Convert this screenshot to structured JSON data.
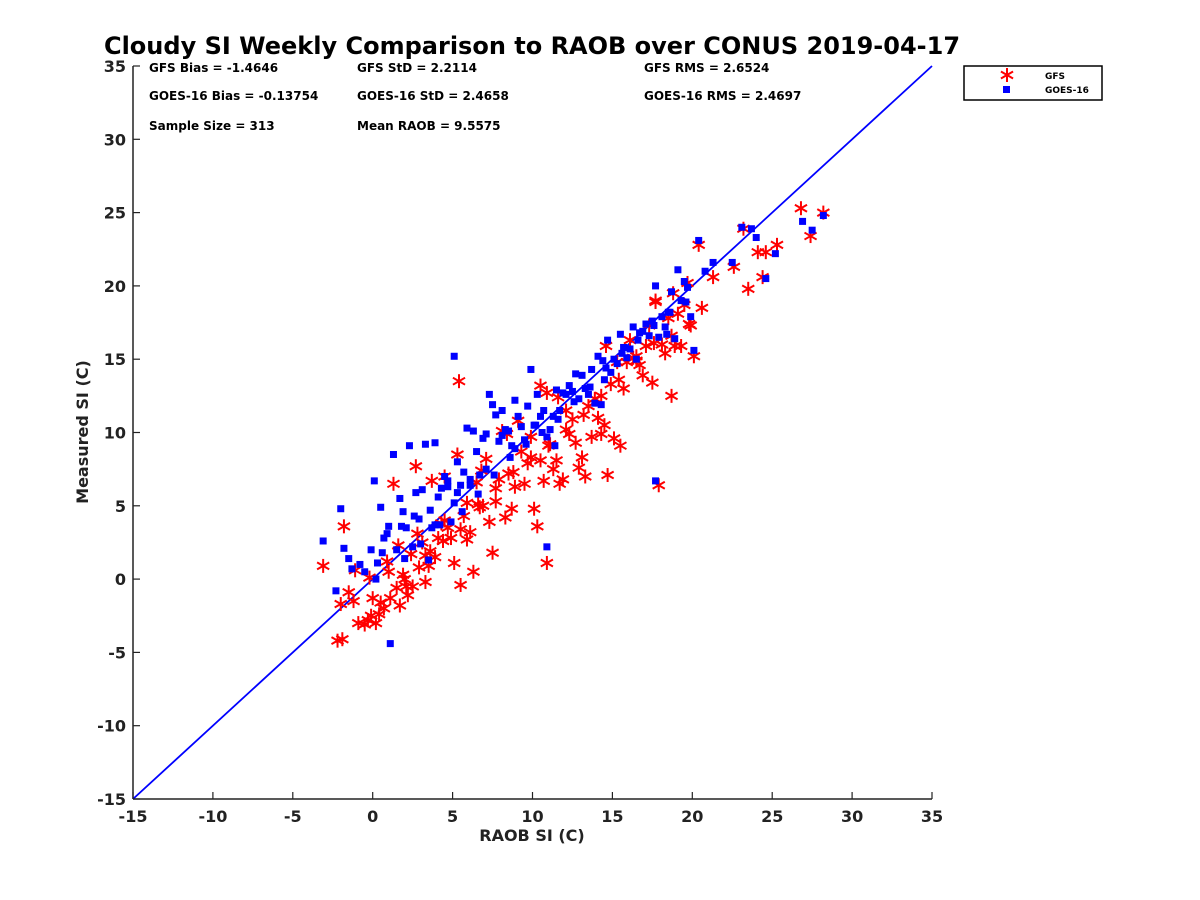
{
  "chart_data": {
    "type": "scatter",
    "title": "Cloudy SI Weekly Comparison to RAOB over CONUS 2019-04-17",
    "xlabel": "RAOB SI (C)",
    "ylabel": "Measured SI (C)",
    "xlim": [
      -15,
      35
    ],
    "ylim": [
      -15,
      35
    ],
    "x_ticks": [
      "-15",
      "-10",
      "-5",
      "0",
      "5",
      "10",
      "15",
      "20",
      "25",
      "30",
      "35"
    ],
    "y_ticks": [
      "-15",
      "-10",
      "-5",
      "0",
      "5",
      "10",
      "15",
      "20",
      "25",
      "30",
      "35"
    ],
    "grid": false,
    "legend_position": "top-right, outside plot",
    "reference_line": {
      "x": [
        -15,
        35
      ],
      "y": [
        -15,
        35
      ],
      "color": "#0000ff"
    },
    "stats": {
      "gfs_bias": "GFS Bias = -1.4646",
      "gfs_std": "GFS StD = 2.2114",
      "gfs_rms": "GFS RMS = 2.6524",
      "goes_bias": "GOES-16 Bias = -0.13754",
      "goes_std": "GOES-16 StD = 2.4658",
      "goes_rms": "GOES-16 RMS = 2.4697",
      "sample_size": "Sample Size = 313",
      "mean_raob": "Mean RAOB = 9.5575"
    },
    "series": [
      {
        "name": "GFS",
        "marker": "asterisk",
        "color": "#ff0000",
        "x": [
          -3.1,
          -2.2,
          -1.9,
          -1.8,
          -1.1,
          -1.2,
          -0.9,
          -0.5,
          -0.3,
          -0.1,
          0.0,
          0.2,
          0.4,
          0.7,
          0.9,
          1.1,
          1.3,
          1.5,
          1.7,
          1.9,
          2.0,
          2.2,
          2.4,
          2.5,
          2.7,
          2.9,
          3.1,
          3.3,
          3.5,
          3.7,
          3.9,
          4.1,
          4.3,
          4.5,
          4.7,
          4.9,
          5.1,
          5.3,
          5.5,
          5.7,
          5.9,
          6.1,
          6.3,
          6.5,
          6.7,
          6.9,
          7.1,
          7.3,
          7.5,
          7.7,
          7.9,
          8.1,
          8.3,
          8.5,
          8.7,
          8.9,
          9.1,
          9.3,
          9.5,
          9.7,
          9.9,
          10.1,
          10.3,
          10.5,
          10.7,
          10.9,
          11.1,
          11.3,
          11.5,
          11.7,
          11.9,
          12.1,
          12.3,
          12.5,
          12.7,
          12.9,
          13.1,
          13.3,
          13.5,
          13.7,
          13.9,
          14.1,
          14.3,
          14.5,
          14.7,
          14.9,
          15.1,
          15.3,
          15.5,
          15.7,
          15.9,
          16.1,
          16.3,
          16.5,
          16.7,
          16.9,
          17.1,
          17.3,
          17.5,
          17.7,
          17.9,
          18.1,
          18.3,
          18.5,
          18.7,
          18.9,
          19.1,
          19.3,
          19.5,
          19.7,
          19.9,
          20.1,
          20.4,
          21.3,
          22.6,
          23.2,
          23.5,
          24.1,
          24.4,
          24.6,
          25.3,
          26.8,
          27.4,
          28.2,
          5.4,
          10.9,
          17.7,
          1.6,
          2.8,
          4.5,
          6.8,
          10.5,
          0.5,
          3.6,
          5.9,
          8.4,
          11.6,
          14.6,
          18.8,
          -2.0,
          -1.5,
          -0.2,
          1.0,
          2.1,
          3.3,
          4.4,
          5.5,
          6.6,
          7.7,
          8.8,
          9.9,
          11.0,
          12.1,
          13.2,
          14.3,
          15.4,
          16.5,
          17.6,
          18.7,
          19.8,
          20.6
        ],
        "y": [
          0.9,
          -4.2,
          -4.1,
          3.6,
          0.6,
          -1.5,
          -3.0,
          -3.1,
          -2.8,
          -2.5,
          -1.3,
          -3.0,
          -2.4,
          -2.0,
          1.2,
          -1.3,
          6.5,
          -0.6,
          -1.8,
          0.3,
          0.0,
          -1.1,
          1.7,
          -0.5,
          7.7,
          0.8,
          2.5,
          -0.2,
          0.9,
          6.7,
          1.5,
          2.8,
          3.8,
          7.0,
          3.5,
          2.8,
          1.1,
          8.5,
          -0.4,
          4.3,
          2.7,
          3.2,
          0.5,
          6.6,
          4.9,
          5.0,
          8.2,
          3.9,
          1.8,
          5.3,
          6.8,
          10.1,
          4.2,
          7.2,
          4.8,
          6.3,
          10.8,
          8.7,
          6.5,
          7.9,
          9.7,
          4.8,
          3.6,
          8.1,
          6.7,
          1.1,
          9.2,
          7.5,
          8.1,
          6.5,
          6.8,
          11.5,
          9.9,
          10.9,
          9.3,
          7.6,
          8.3,
          7.0,
          11.8,
          9.7,
          12.3,
          11.0,
          9.9,
          10.5,
          7.1,
          13.3,
          9.6,
          14.8,
          9.1,
          13.0,
          14.8,
          16.3,
          15.1,
          15.2,
          14.6,
          13.9,
          15.9,
          17.3,
          13.4,
          18.9,
          6.4,
          16.0,
          15.4,
          17.8,
          12.5,
          15.9,
          18.1,
          15.9,
          18.7,
          20.2,
          17.3,
          15.2,
          22.8,
          20.6,
          21.3,
          23.9,
          19.8,
          22.3,
          20.6,
          22.3,
          22.8,
          25.3,
          23.4,
          25.0,
          13.5,
          12.7,
          19.0,
          2.3,
          3.1,
          4.0,
          7.4,
          13.2,
          -1.6,
          1.9,
          5.2,
          9.9,
          12.4,
          15.9,
          19.5,
          -1.7,
          -0.9,
          0.1,
          0.5,
          -0.5,
          1.6,
          2.6,
          3.4,
          5.1,
          6.2,
          7.3,
          8.3,
          9.1,
          10.2,
          11.2,
          12.5,
          13.6,
          14.9,
          16.1,
          16.6,
          17.4,
          18.5
        ]
      },
      {
        "name": "GOES-16",
        "marker": "square",
        "color": "#0000ff",
        "x": [
          -3.1,
          -2.3,
          -2.0,
          -1.8,
          -1.5,
          -1.3,
          -0.8,
          -0.5,
          -0.1,
          0.1,
          0.3,
          0.5,
          0.7,
          0.9,
          1.1,
          1.3,
          1.5,
          1.7,
          1.9,
          2.1,
          2.3,
          2.5,
          2.7,
          2.9,
          3.1,
          3.3,
          3.5,
          3.7,
          3.9,
          4.1,
          4.3,
          4.5,
          4.7,
          4.9,
          5.1,
          5.3,
          5.5,
          5.7,
          5.9,
          6.1,
          6.3,
          6.5,
          6.7,
          6.9,
          7.1,
          7.3,
          7.5,
          7.7,
          7.9,
          8.1,
          8.3,
          8.5,
          8.7,
          8.9,
          9.1,
          9.3,
          9.5,
          9.7,
          9.9,
          10.1,
          10.3,
          10.5,
          10.7,
          10.9,
          11.1,
          11.3,
          11.5,
          11.7,
          11.9,
          12.1,
          12.3,
          12.5,
          12.7,
          12.9,
          13.1,
          13.3,
          13.5,
          13.7,
          13.9,
          14.1,
          14.3,
          14.5,
          14.7,
          14.9,
          15.1,
          15.3,
          15.5,
          15.7,
          15.9,
          16.1,
          16.3,
          16.5,
          16.7,
          16.9,
          17.1,
          17.3,
          17.5,
          17.7,
          17.9,
          18.1,
          18.3,
          18.5,
          18.7,
          18.9,
          19.1,
          19.3,
          19.5,
          19.7,
          19.9,
          20.1,
          20.4,
          20.8,
          21.3,
          22.5,
          23.1,
          23.7,
          24.0,
          24.6,
          25.2,
          26.9,
          27.5,
          28.2,
          5.3,
          10.2,
          17.7,
          1.0,
          2.6,
          3.9,
          4.7,
          8.1,
          11.4,
          14.4,
          18.4,
          0.2,
          2.0,
          3.0,
          4.2,
          5.6,
          6.6,
          7.6,
          8.6,
          9.6,
          10.6,
          11.6,
          12.6,
          13.6,
          14.6,
          15.6,
          16.6,
          17.6,
          18.6,
          19.6,
          0.6,
          1.8,
          3.6,
          5.1,
          6.1,
          7.1,
          8.9,
          10.9
        ],
        "y": [
          2.6,
          -0.8,
          4.8,
          2.1,
          1.4,
          0.7,
          1.0,
          0.5,
          2.0,
          6.7,
          1.1,
          4.9,
          2.8,
          3.1,
          -4.4,
          8.5,
          2.0,
          5.5,
          4.6,
          3.5,
          9.1,
          2.2,
          5.9,
          4.1,
          6.1,
          9.2,
          1.3,
          3.5,
          9.3,
          5.6,
          6.2,
          7.0,
          6.7,
          3.9,
          15.2,
          8.0,
          6.4,
          7.3,
          10.3,
          6.8,
          10.1,
          8.7,
          7.1,
          9.6,
          9.9,
          12.6,
          11.9,
          11.2,
          9.4,
          11.5,
          10.2,
          10.1,
          9.1,
          12.2,
          11.1,
          10.4,
          9.5,
          11.8,
          14.3,
          10.5,
          12.6,
          11.1,
          11.5,
          2.2,
          10.2,
          11.1,
          12.9,
          11.5,
          12.7,
          12.6,
          13.2,
          12.8,
          14.0,
          12.3,
          13.9,
          13.0,
          12.6,
          14.3,
          12.0,
          15.2,
          11.9,
          13.6,
          16.3,
          14.1,
          15.0,
          14.7,
          16.7,
          15.8,
          15.1,
          15.7,
          17.2,
          15.0,
          16.8,
          16.9,
          17.4,
          16.6,
          17.6,
          20.0,
          16.5,
          17.9,
          17.2,
          18.2,
          19.6,
          16.4,
          21.1,
          19.0,
          20.3,
          19.9,
          17.9,
          15.6,
          23.1,
          21.0,
          21.6,
          21.6,
          24.0,
          23.9,
          23.3,
          20.5,
          22.2,
          24.4,
          23.8,
          24.8,
          5.9,
          10.5,
          6.7,
          3.6,
          4.3,
          3.7,
          6.3,
          9.8,
          9.1,
          14.9,
          16.7,
          0.0,
          1.4,
          2.4,
          3.7,
          4.6,
          5.8,
          7.1,
          8.3,
          9.2,
          10.0,
          10.9,
          12.1,
          13.1,
          14.4,
          15.4,
          16.3,
          17.3,
          18.2,
          18.9,
          1.8,
          3.6,
          4.7,
          5.2,
          6.4,
          7.5,
          8.9,
          9.7
        ]
      }
    ]
  }
}
